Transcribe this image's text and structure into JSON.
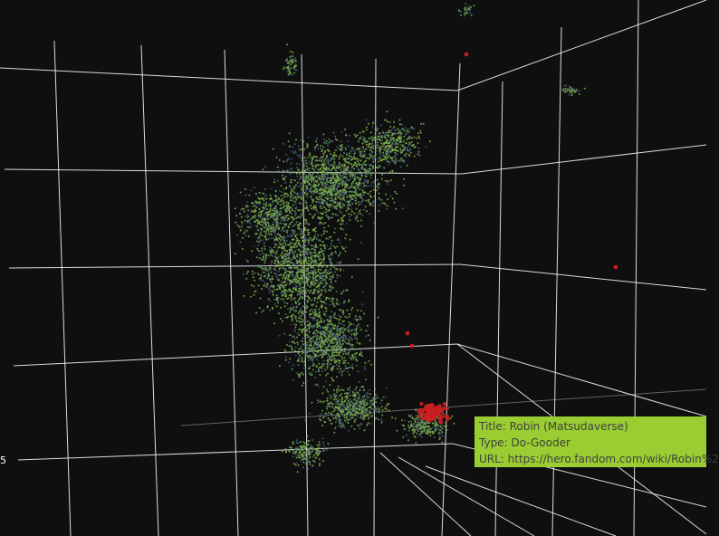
{
  "chart_data": {
    "type": "scatter",
    "projection": "3d-perspective",
    "background": "#0f0f0f",
    "grid": true,
    "grid_color": "#ffffff",
    "series": [
      {
        "color": "#7fb04a",
        "count_shown": "many"
      },
      {
        "color": "#3f6f72",
        "count_shown": "many"
      },
      {
        "color": "#4a4a78",
        "count_shown": "many"
      },
      {
        "color": "#cc1f1f",
        "count_shown": "few"
      }
    ],
    "tick_labels": [
      "5"
    ],
    "tooltip": {
      "title": "Title: Robin (Matsudaverse)",
      "type": "Type: Do-Gooder",
      "url": "URL: https://hero.fandom.com/wiki/Robin%2"
    }
  }
}
